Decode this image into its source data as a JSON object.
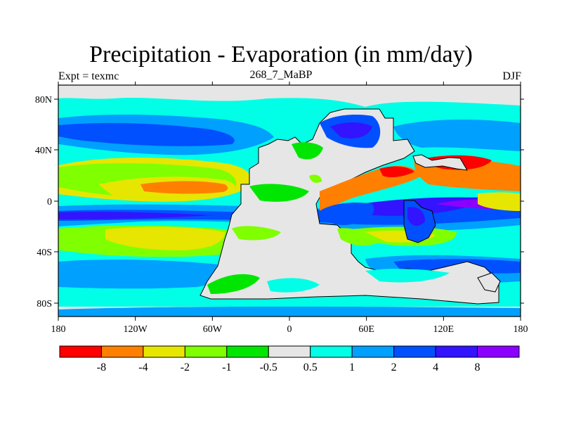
{
  "title": "Precipitation - Evaporation (in mm/day)",
  "left_label": "Expt = texmc",
  "center_label": "268_7_MaBP",
  "right_label": "DJF",
  "map": {
    "x_ticks": [
      "180",
      "120W",
      "60W",
      "0",
      "60E",
      "120E",
      "180"
    ],
    "y_ticks": [
      "80N",
      "40N",
      "0",
      "40S",
      "80S"
    ]
  },
  "colorbar": {
    "colors": [
      "#ff0000",
      "#ff8000",
      "#e6e600",
      "#80ff00",
      "#00e600",
      "#e6e6e6",
      "#00ffe6",
      "#00a0ff",
      "#0050ff",
      "#3214ff",
      "#8c00ff"
    ],
    "labels": [
      "-8",
      "-4",
      "-2",
      "-1",
      "-0.5",
      "0.5",
      "1",
      "2",
      "4",
      "8"
    ]
  }
}
